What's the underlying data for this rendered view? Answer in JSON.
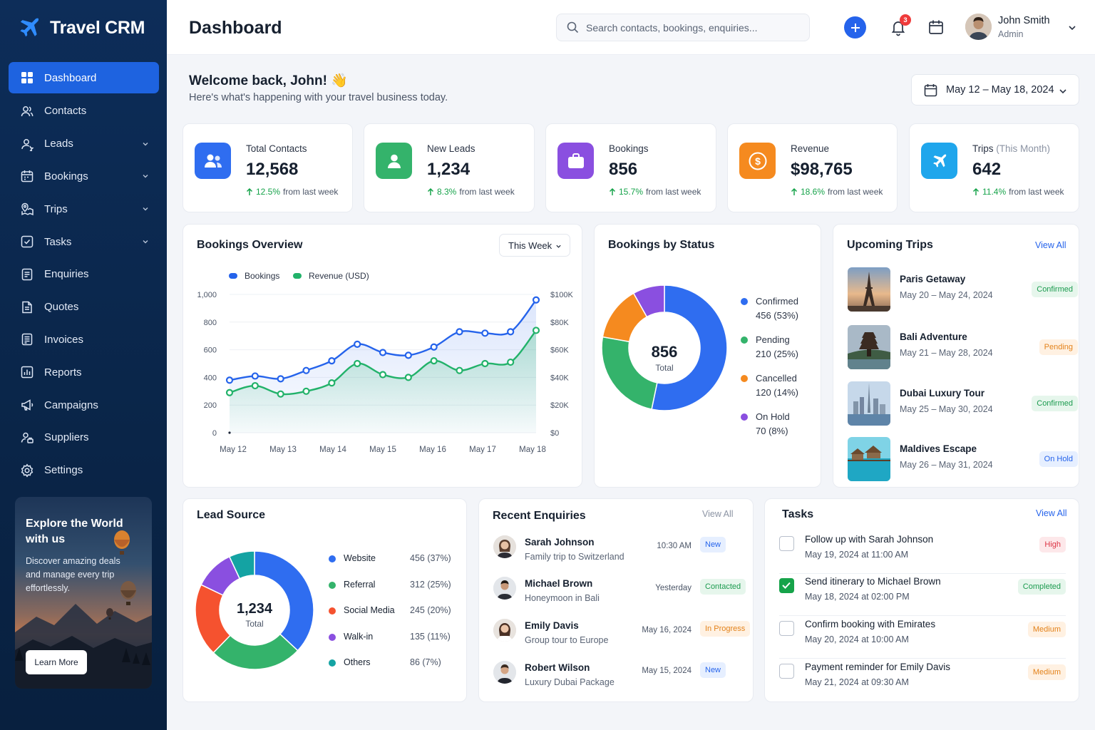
{
  "app": {
    "name": "Travel CRM"
  },
  "sidebar": {
    "items": [
      {
        "label": "Dashboard",
        "icon": "grid-icon",
        "active": true
      },
      {
        "label": "Contacts",
        "icon": "users-icon"
      },
      {
        "label": "Leads",
        "icon": "leads-icon",
        "expandable": true
      },
      {
        "label": "Bookings",
        "icon": "calendar-icon",
        "expandable": true
      },
      {
        "label": "Trips",
        "icon": "map-pin-icon",
        "expandable": true
      },
      {
        "label": "Tasks",
        "icon": "check-square-icon",
        "expandable": true
      },
      {
        "label": "Enquiries",
        "icon": "file-text-icon"
      },
      {
        "label": "Quotes",
        "icon": "quote-doc-icon"
      },
      {
        "label": "Invoices",
        "icon": "invoice-icon"
      },
      {
        "label": "Reports",
        "icon": "bar-chart-icon"
      },
      {
        "label": "Campaigns",
        "icon": "megaphone-icon"
      },
      {
        "label": "Suppliers",
        "icon": "supplier-icon"
      },
      {
        "label": "Settings",
        "icon": "gear-icon"
      }
    ],
    "promo": {
      "title": "Explore the World with us",
      "text": "Discover amazing deals and manage every trip effortlessly.",
      "button": "Learn More"
    }
  },
  "header": {
    "title": "Dashboard",
    "search_placeholder": "Search contacts, bookings, enquiries...",
    "notification_count": "3",
    "user": {
      "name": "John Smith",
      "role": "Admin"
    }
  },
  "welcome": {
    "title": "Welcome back, John! 👋",
    "subtitle": "Here's what's happening with your travel business today.",
    "date_range": "May 12 – May 18, 2024"
  },
  "stats": [
    {
      "label": "Total Contacts",
      "label_suffix": "",
      "value": "12,568",
      "change": "12.5%",
      "change_text": "from last week",
      "color": "#2f6df0",
      "icon": "users-icon"
    },
    {
      "label": "New Leads",
      "label_suffix": "",
      "value": "1,234",
      "change": "8.3%",
      "change_text": "from last week",
      "color": "#34b36b",
      "icon": "user-icon"
    },
    {
      "label": "Bookings",
      "label_suffix": "",
      "value": "856",
      "change": "15.7%",
      "change_text": "from last week",
      "color": "#8a4fe0",
      "icon": "briefcase-icon"
    },
    {
      "label": "Revenue",
      "label_suffix": "",
      "value": "$98,765",
      "change": "18.6%",
      "change_text": "from last week",
      "color": "#f58a1f",
      "icon": "dollar-icon"
    },
    {
      "label": "Trips",
      "label_suffix": "(This Month)",
      "value": "642",
      "change": "11.4%",
      "change_text": "from last week",
      "color": "#1fa6ec",
      "icon": "plane-icon"
    }
  ],
  "bookings_overview": {
    "title": "Bookings Overview",
    "period": "This Week",
    "chart_data": {
      "type": "line",
      "categories": [
        "May 12",
        "May 13",
        "May 14",
        "May 15",
        "May 16",
        "May 17",
        "May 18"
      ],
      "x": [
        "May 12",
        "",
        "May 13",
        "",
        "May 14",
        "",
        "May 15",
        "",
        "May 16",
        "",
        "May 17",
        "",
        "May 18"
      ],
      "series": [
        {
          "name": "Bookings",
          "color": "#2563eb",
          "axis": "left",
          "values": [
            380,
            410,
            390,
            450,
            520,
            640,
            580,
            560,
            620,
            730,
            720,
            730,
            960
          ]
        },
        {
          "name": "Revenue (USD)",
          "color": "#22b26a",
          "axis": "right",
          "values": [
            29000,
            34000,
            28000,
            30000,
            36000,
            50000,
            42000,
            40000,
            52000,
            45000,
            50000,
            51000,
            74000
          ]
        }
      ],
      "ylim": [
        0,
        1000
      ],
      "y_ticks": [
        "1,000",
        "800",
        "600",
        "400",
        "200",
        "0"
      ],
      "y2lim": [
        0,
        100000
      ],
      "y2_ticks": [
        "$100K",
        "$80K",
        "$60K",
        "$40K",
        "$20K",
        "$0"
      ],
      "legend": "top-left"
    }
  },
  "bookings_status": {
    "title": "Bookings by Status",
    "total": "856",
    "total_label": "Total",
    "chart_data": {
      "type": "pie",
      "categories": [
        "Confirmed",
        "Pending",
        "Cancelled",
        "On Hold"
      ],
      "values": [
        456,
        210,
        120,
        70
      ],
      "labels": [
        "456 (53%)",
        "210 (25%)",
        "120 (14%)",
        "70 (8%)"
      ],
      "colors": [
        "#2f6df0",
        "#34b36b",
        "#f58a1f",
        "#8a4fe0"
      ]
    }
  },
  "upcoming_trips": {
    "title": "Upcoming Trips",
    "view_all": "View All",
    "items": [
      {
        "name": "Paris Getaway",
        "dates": "May 20 – May 24, 2024",
        "status": "Confirmed",
        "variant": "green"
      },
      {
        "name": "Bali Adventure",
        "dates": "May 21 – May 28, 2024",
        "status": "Pending",
        "variant": "orange"
      },
      {
        "name": "Dubai Luxury Tour",
        "dates": "May 25 – May 30, 2024",
        "status": "Confirmed",
        "variant": "green"
      },
      {
        "name": "Maldives Escape",
        "dates": "May 26 – May 31, 2024",
        "status": "On Hold",
        "variant": "blue"
      }
    ]
  },
  "lead_source": {
    "title": "Lead Source",
    "total": "1,234",
    "total_label": "Total",
    "chart_data": {
      "type": "pie",
      "categories": [
        "Website",
        "Referral",
        "Social Media",
        "Walk-in",
        "Others"
      ],
      "values": [
        456,
        312,
        245,
        135,
        86
      ],
      "labels": [
        "456 (37%)",
        "312 (25%)",
        "245 (20%)",
        "135 (11%)",
        "86 (7%)"
      ],
      "colors": [
        "#2f6df0",
        "#34b36b",
        "#f5522f",
        "#8a4fe0",
        "#14a3a3"
      ]
    }
  },
  "recent_enquiries": {
    "title": "Recent Enquiries",
    "view_all": "View All",
    "items": [
      {
        "name": "Sarah Johnson",
        "desc": "Family trip to Switzerland",
        "time": "10:30 AM",
        "status": "New",
        "variant": "blue"
      },
      {
        "name": "Michael Brown",
        "desc": "Honeymoon in Bali",
        "time": "Yesterday",
        "status": "Contacted",
        "variant": "green"
      },
      {
        "name": "Emily Davis",
        "desc": "Group tour to Europe",
        "time": "May 16, 2024",
        "status": "In Progress",
        "variant": "orange"
      },
      {
        "name": "Robert Wilson",
        "desc": "Luxury Dubai Package",
        "time": "May 15, 2024",
        "status": "New",
        "variant": "blue"
      }
    ]
  },
  "tasks": {
    "title": "Tasks",
    "view_all": "View All",
    "items": [
      {
        "name": "Follow up with Sarah Johnson",
        "date": "May 19, 2024 at 11:00 AM",
        "priority": "High",
        "variant": "red",
        "done": false
      },
      {
        "name": "Send itinerary to Michael Brown",
        "date": "May 18, 2024 at 02:00 PM",
        "priority": "Completed",
        "variant": "green",
        "done": true
      },
      {
        "name": "Confirm booking with Emirates",
        "date": "May 20, 2024 at 10:00 AM",
        "priority": "Medium",
        "variant": "orange",
        "done": false
      },
      {
        "name": "Payment reminder for Emily Davis",
        "date": "May 21, 2024 at 09:30 AM",
        "priority": "Medium",
        "variant": "orange",
        "done": false
      }
    ]
  }
}
